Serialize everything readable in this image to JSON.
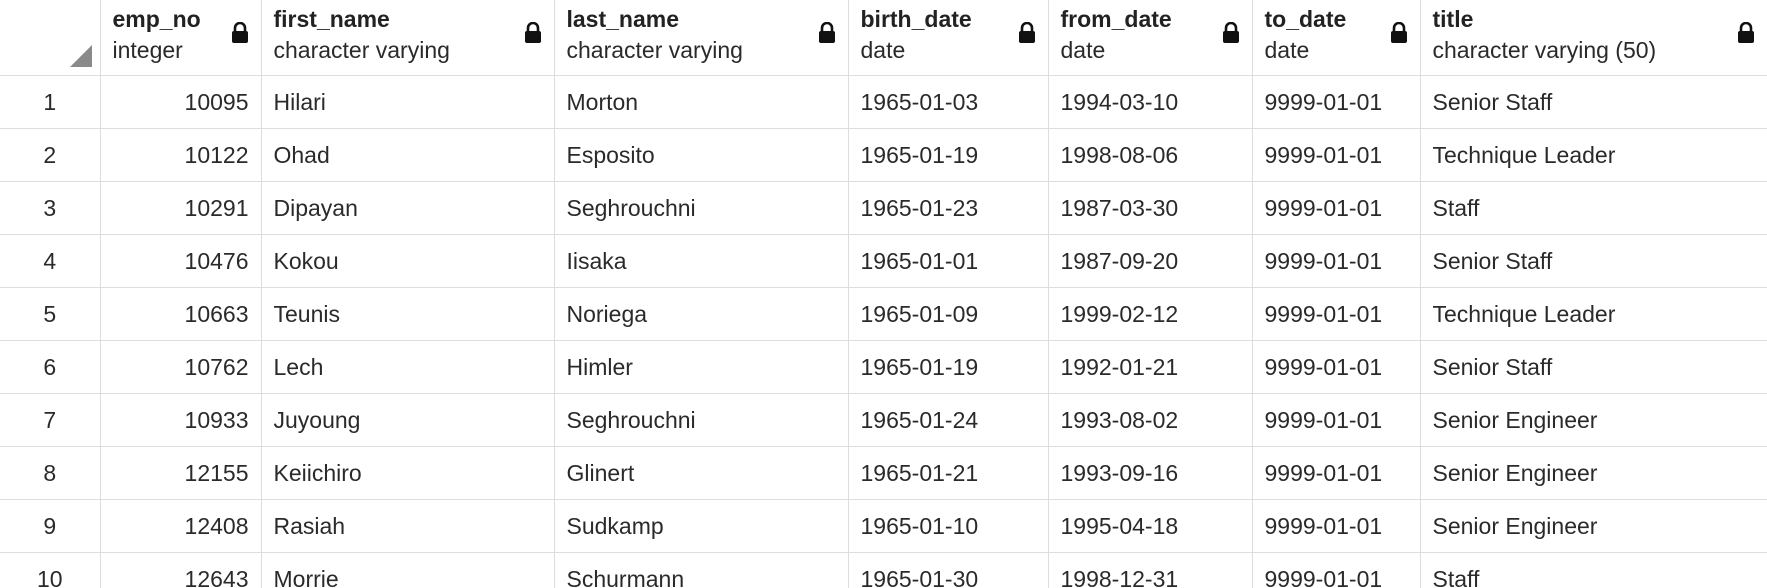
{
  "columns": [
    {
      "name": "emp_no",
      "type": "integer"
    },
    {
      "name": "first_name",
      "type": "character varying"
    },
    {
      "name": "last_name",
      "type": "character varying"
    },
    {
      "name": "birth_date",
      "type": "date"
    },
    {
      "name": "from_date",
      "type": "date"
    },
    {
      "name": "to_date",
      "type": "date"
    },
    {
      "name": "title",
      "type": "character varying (50)"
    }
  ],
  "rows": [
    {
      "n": "1",
      "emp_no": "10095",
      "first_name": "Hilari",
      "last_name": "Morton",
      "birth_date": "1965-01-03",
      "from_date": "1994-03-10",
      "to_date": "9999-01-01",
      "title": "Senior Staff"
    },
    {
      "n": "2",
      "emp_no": "10122",
      "first_name": "Ohad",
      "last_name": "Esposito",
      "birth_date": "1965-01-19",
      "from_date": "1998-08-06",
      "to_date": "9999-01-01",
      "title": "Technique Leader"
    },
    {
      "n": "3",
      "emp_no": "10291",
      "first_name": "Dipayan",
      "last_name": "Seghrouchni",
      "birth_date": "1965-01-23",
      "from_date": "1987-03-30",
      "to_date": "9999-01-01",
      "title": "Staff"
    },
    {
      "n": "4",
      "emp_no": "10476",
      "first_name": "Kokou",
      "last_name": "Iisaka",
      "birth_date": "1965-01-01",
      "from_date": "1987-09-20",
      "to_date": "9999-01-01",
      "title": "Senior Staff"
    },
    {
      "n": "5",
      "emp_no": "10663",
      "first_name": "Teunis",
      "last_name": "Noriega",
      "birth_date": "1965-01-09",
      "from_date": "1999-02-12",
      "to_date": "9999-01-01",
      "title": "Technique Leader"
    },
    {
      "n": "6",
      "emp_no": "10762",
      "first_name": "Lech",
      "last_name": "Himler",
      "birth_date": "1965-01-19",
      "from_date": "1992-01-21",
      "to_date": "9999-01-01",
      "title": "Senior Staff"
    },
    {
      "n": "7",
      "emp_no": "10933",
      "first_name": "Juyoung",
      "last_name": "Seghrouchni",
      "birth_date": "1965-01-24",
      "from_date": "1993-08-02",
      "to_date": "9999-01-01",
      "title": "Senior Engineer"
    },
    {
      "n": "8",
      "emp_no": "12155",
      "first_name": "Keiichiro",
      "last_name": "Glinert",
      "birth_date": "1965-01-21",
      "from_date": "1993-09-16",
      "to_date": "9999-01-01",
      "title": "Senior Engineer"
    },
    {
      "n": "9",
      "emp_no": "12408",
      "first_name": "Rasiah",
      "last_name": "Sudkamp",
      "birth_date": "1965-01-10",
      "from_date": "1995-04-18",
      "to_date": "9999-01-01",
      "title": "Senior Engineer"
    },
    {
      "n": "10",
      "emp_no": "12643",
      "first_name": "Morrie",
      "last_name": "Schurmann",
      "birth_date": "1965-01-30",
      "from_date": "1998-12-31",
      "to_date": "9999-01-01",
      "title": "Staff"
    }
  ],
  "icons": {
    "column_lock": "lock-icon",
    "select_all": "select-all-corner-icon"
  },
  "colors": {
    "grid_line": "#dedede",
    "corner_triangle": "#8a8a8a",
    "text": "#222222"
  }
}
